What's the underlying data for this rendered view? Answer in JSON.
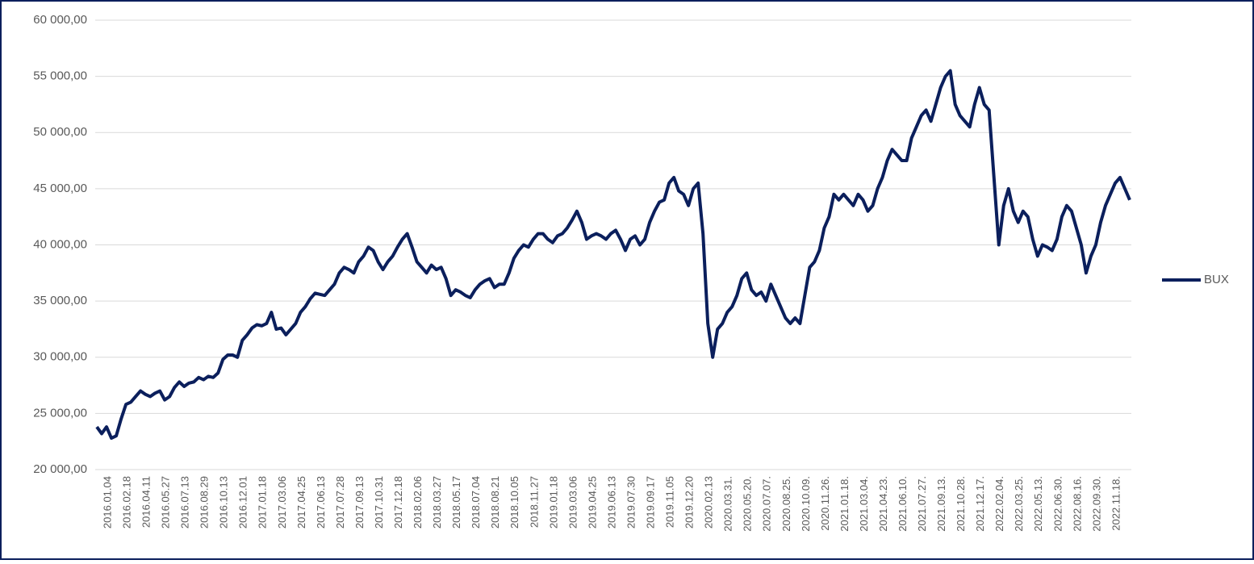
{
  "chart_data": {
    "type": "line",
    "categories": [
      "2016.01.04",
      null,
      null,
      null,
      "2016.02.18",
      null,
      null,
      null,
      "2016.04.11",
      null,
      null,
      null,
      "2016.05.27",
      null,
      null,
      null,
      "2016.07.13",
      null,
      null,
      null,
      "2016.08.29",
      null,
      null,
      null,
      "2016.10.13",
      null,
      null,
      null,
      "2016.12.01",
      null,
      null,
      null,
      "2017.01.18",
      null,
      null,
      null,
      "2017.03.06",
      null,
      null,
      null,
      "2017.04.25",
      null,
      null,
      null,
      "2017.06.13",
      null,
      null,
      null,
      "2017.07.28",
      null,
      null,
      null,
      "2017.09.13",
      null,
      null,
      null,
      "2017.10.31",
      null,
      null,
      null,
      "2017.12.18",
      null,
      null,
      null,
      "2018.02.06",
      null,
      null,
      null,
      "2018.03.27",
      null,
      null,
      null,
      "2018.05.17",
      null,
      null,
      null,
      "2018.07.04",
      null,
      null,
      null,
      "2018.08.21",
      null,
      null,
      null,
      "2018.10.05",
      null,
      null,
      null,
      "2018.11.27",
      null,
      null,
      null,
      "2019.01.18",
      null,
      null,
      null,
      "2019.03.06",
      null,
      null,
      null,
      "2019.04.25",
      null,
      null,
      null,
      "2019.06.13",
      null,
      null,
      null,
      "2019.07.30",
      null,
      null,
      null,
      "2019.09.17",
      null,
      null,
      null,
      "2019.11.05",
      null,
      null,
      null,
      "2019.12.20",
      null,
      null,
      null,
      "2020.02.13",
      null,
      null,
      null,
      "2020.03.31.",
      null,
      null,
      null,
      "2020.05.20.",
      null,
      null,
      null,
      "2020.07.07.",
      null,
      null,
      null,
      "2020.08.25.",
      null,
      null,
      null,
      "2020.10.09.",
      null,
      null,
      null,
      "2020.11.26.",
      null,
      null,
      null,
      "2021.01.18.",
      null,
      null,
      null,
      "2021.03.04.",
      null,
      null,
      null,
      "2021.04.23.",
      null,
      null,
      null,
      "2021.06.10.",
      null,
      null,
      null,
      "2021.07.27.",
      null,
      null,
      null,
      "2021.09.13.",
      null,
      null,
      null,
      "2021.10.28.",
      null,
      null,
      null,
      "2021.12.17.",
      null,
      null,
      null,
      "2022.02.04.",
      null,
      null,
      null,
      "2022.03.25.",
      null,
      null,
      null,
      "2022.05.13.",
      null,
      null,
      null,
      "2022.06.30.",
      null,
      null,
      null,
      "2022.08.16.",
      null,
      null,
      null,
      "2022.09.30.",
      null,
      null,
      null,
      "2022.11.18.",
      null,
      null,
      null,
      null,
      null
    ],
    "series": [
      {
        "name": "BUX",
        "color": "#0b1f5c",
        "values": [
          23800,
          23200,
          23800,
          22800,
          23000,
          24500,
          25800,
          26000,
          26500,
          27000,
          26700,
          26500,
          26800,
          27000,
          26200,
          26500,
          27300,
          27800,
          27400,
          27700,
          27800,
          28200,
          28000,
          28300,
          28200,
          28600,
          29800,
          30200,
          30200,
          30000,
          31500,
          32000,
          32600,
          32900,
          32800,
          33000,
          34000,
          32500,
          32600,
          32000,
          32500,
          33000,
          34000,
          34500,
          35200,
          35700,
          35600,
          35500,
          36000,
          36500,
          37500,
          38000,
          37800,
          37500,
          38500,
          39000,
          39800,
          39500,
          38500,
          37800,
          38500,
          39000,
          39800,
          40500,
          41000,
          39800,
          38500,
          38000,
          37500,
          38200,
          37800,
          38000,
          37000,
          35500,
          36000,
          35800,
          35500,
          35300,
          36000,
          36500,
          36800,
          37000,
          36200,
          36500,
          36500,
          37500,
          38800,
          39500,
          40000,
          39800,
          40500,
          41000,
          41000,
          40500,
          40200,
          40800,
          41000,
          41500,
          42200,
          43000,
          42000,
          40500,
          40800,
          41000,
          40800,
          40500,
          41000,
          41300,
          40500,
          39500,
          40500,
          40800,
          40000,
          40500,
          42000,
          43000,
          43800,
          44000,
          45500,
          46000,
          44800,
          44500,
          43500,
          45000,
          45500,
          41000,
          33000,
          30000,
          32500,
          33000,
          34000,
          34500,
          35500,
          37000,
          37500,
          36000,
          35500,
          35800,
          35000,
          36500,
          35500,
          34500,
          33500,
          33000,
          33500,
          33000,
          35500,
          38000,
          38500,
          39500,
          41500,
          42500,
          44500,
          44000,
          44500,
          44000,
          43500,
          44500,
          44000,
          43000,
          43500,
          45000,
          46000,
          47500,
          48500,
          48000,
          47500,
          47500,
          49500,
          50500,
          51500,
          52000,
          51000,
          52500,
          54000,
          55000,
          55500,
          52500,
          51500,
          51000,
          50500,
          52500,
          54000,
          52500,
          52000,
          46000,
          40000,
          43500,
          45000,
          43000,
          42000,
          43000,
          42500,
          40500,
          39000,
          40000,
          39800,
          39500,
          40500,
          42500,
          43500,
          43000,
          41500,
          40000,
          37500,
          39000,
          40000,
          42000,
          43500,
          44500,
          45500,
          46000,
          45000,
          44000
        ]
      }
    ],
    "ylim": [
      20000,
      60000
    ],
    "yticks": [
      {
        "value": 20000,
        "label": "20 000,00"
      },
      {
        "value": 25000,
        "label": "25 000,00"
      },
      {
        "value": 30000,
        "label": "30 000,00"
      },
      {
        "value": 35000,
        "label": "35 000,00"
      },
      {
        "value": 40000,
        "label": "40 000,00"
      },
      {
        "value": 45000,
        "label": "45 000,00"
      },
      {
        "value": 50000,
        "label": "50 000,00"
      },
      {
        "value": 55000,
        "label": "55 000,00"
      },
      {
        "value": 60000,
        "label": "60 000,00"
      }
    ],
    "grid": true,
    "legend": "right"
  }
}
